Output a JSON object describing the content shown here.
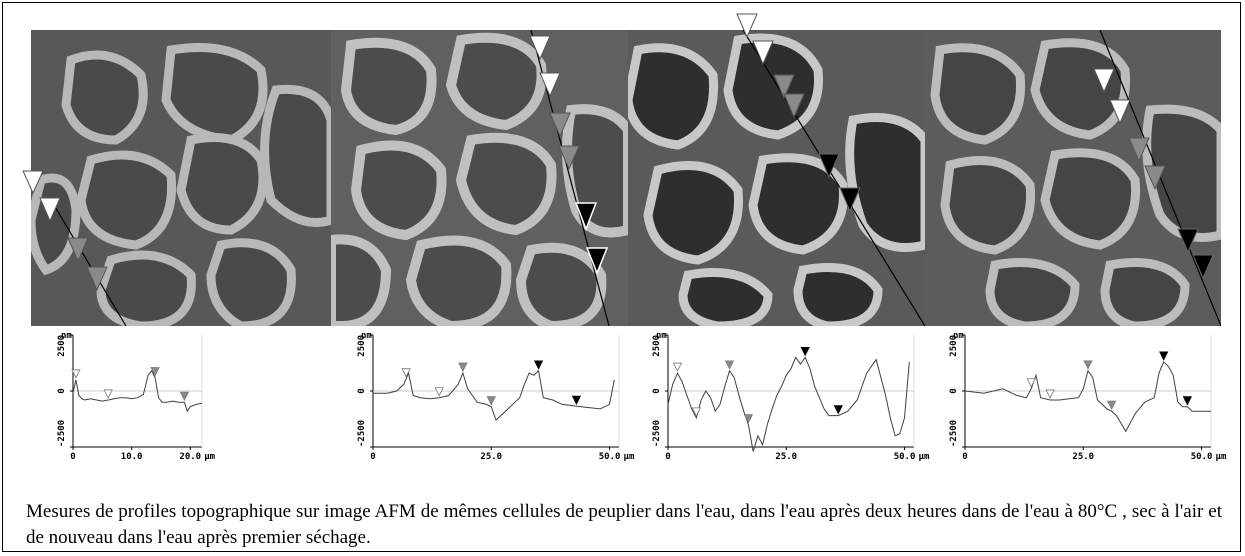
{
  "caption": "Mesures de profiles topographique sur image AFM de mêmes cellules de peuplier dans l'eau, dans l'eau après deux heures dans de l'eau à 80°C , sec à l'air et de nouveau dans l'eau après premier séchage.",
  "colors": {
    "frame": "#000000",
    "open_marker": "#ffffff",
    "gray_marker": "#8a8a8a",
    "black_marker": "#000000",
    "profile_line": "#404040"
  },
  "chart_data": [
    {
      "type": "line",
      "panel": 1,
      "x_unit": "µm",
      "y_unit": "nm",
      "xlim": [
        0,
        22
      ],
      "ylim": [
        -2500,
        2500
      ],
      "x_ticks": [
        0,
        10.0,
        20.0
      ],
      "x_tick_labels": [
        "0",
        "10.0",
        "20.0"
      ],
      "y_ticks": [
        2500,
        0,
        -2500
      ],
      "y_tick_labels": [
        "2500",
        "0",
        "-2500"
      ],
      "x": [
        0,
        0.5,
        1,
        1.5,
        2,
        3,
        4,
        5,
        6,
        7,
        8,
        9,
        10,
        11,
        12,
        12.8,
        13.4,
        14,
        14.6,
        15.2,
        16,
        17,
        18,
        19,
        19.5,
        20,
        21,
        22
      ],
      "y": [
        -100,
        500,
        -200,
        -350,
        -400,
        -350,
        -400,
        -450,
        -400,
        -350,
        -300,
        -300,
        -350,
        -300,
        -150,
        700,
        900,
        600,
        -300,
        -500,
        -500,
        -450,
        -500,
        -500,
        -900,
        -700,
        -600,
        -550
      ],
      "markers": [
        {
          "x": 0.5,
          "style": "open"
        },
        {
          "x": 6.0,
          "style": "open"
        },
        {
          "x": 14.0,
          "style": "gray"
        },
        {
          "x": 19.0,
          "style": "gray"
        }
      ]
    },
    {
      "type": "line",
      "panel": 2,
      "x_unit": "µm",
      "y_unit": "nm",
      "xlim": [
        0,
        52
      ],
      "ylim": [
        -2500,
        2500
      ],
      "x_ticks": [
        0,
        25.0,
        50.0
      ],
      "x_tick_labels": [
        "0",
        "25.0",
        "50.0"
      ],
      "y_ticks": [
        2500,
        0,
        -2500
      ],
      "y_tick_labels": [
        "2500",
        "0",
        "-2500"
      ],
      "x": [
        0,
        3,
        5,
        6.5,
        7.5,
        8.5,
        10,
        12,
        14,
        16,
        18,
        19,
        20,
        22,
        24,
        25,
        26,
        28,
        30,
        31,
        32,
        33,
        34,
        35,
        36,
        38,
        40,
        44,
        48,
        50,
        51
      ],
      "y": [
        -100,
        -100,
        0,
        300,
        800,
        -200,
        -300,
        -350,
        -300,
        -200,
        300,
        800,
        100,
        -500,
        -600,
        -700,
        -1300,
        -900,
        -500,
        -300,
        300,
        800,
        700,
        900,
        -300,
        -400,
        -600,
        -700,
        -800,
        -600,
        500
      ],
      "markers": [
        {
          "x": 7.0,
          "style": "open"
        },
        {
          "x": 14.0,
          "style": "open"
        },
        {
          "x": 19.0,
          "style": "gray"
        },
        {
          "x": 25.0,
          "style": "gray"
        },
        {
          "x": 35.0,
          "style": "black"
        },
        {
          "x": 43.0,
          "style": "black"
        }
      ]
    },
    {
      "type": "line",
      "panel": 3,
      "x_unit": "µm",
      "y_unit": "nm",
      "xlim": [
        0,
        52
      ],
      "ylim": [
        -2500,
        2500
      ],
      "x_ticks": [
        0,
        25.0,
        50.0
      ],
      "x_tick_labels": [
        "0",
        "25.0",
        "50.0"
      ],
      "y_ticks": [
        2500,
        0,
        -2500
      ],
      "y_tick_labels": [
        "2500",
        "0",
        "-2500"
      ],
      "x": [
        0,
        1,
        2,
        3,
        4,
        5,
        6,
        7,
        8,
        9,
        10,
        11,
        12,
        13,
        14,
        15,
        16,
        17,
        18,
        19,
        20,
        21,
        22,
        23,
        24,
        25,
        26,
        27,
        28,
        29,
        30,
        31,
        32,
        33,
        34,
        36,
        38,
        40,
        42,
        44,
        45,
        46,
        47,
        48,
        49,
        50,
        51
      ],
      "y": [
        -600,
        300,
        800,
        400,
        -200,
        -800,
        -1200,
        -400,
        0,
        -300,
        -900,
        -600,
        200,
        900,
        600,
        -200,
        -900,
        -1500,
        -2700,
        -2000,
        -2400,
        -1500,
        -800,
        -200,
        200,
        700,
        1000,
        1500,
        1200,
        1500,
        1000,
        200,
        -300,
        -800,
        -1100,
        -1100,
        -900,
        -400,
        800,
        1400,
        600,
        -200,
        -1200,
        -2000,
        -1900,
        -1200,
        1300
      ],
      "markers": [
        {
          "x": 2.0,
          "style": "open"
        },
        {
          "x": 6.0,
          "style": "open"
        },
        {
          "x": 13.0,
          "style": "gray"
        },
        {
          "x": 17.0,
          "style": "gray"
        },
        {
          "x": 29.0,
          "style": "black"
        },
        {
          "x": 36.0,
          "style": "black"
        }
      ]
    },
    {
      "type": "line",
      "panel": 4,
      "x_unit": "µm",
      "y_unit": "nm",
      "xlim": [
        0,
        52
      ],
      "ylim": [
        -2500,
        2500
      ],
      "x_ticks": [
        0,
        25.0,
        50.0
      ],
      "x_tick_labels": [
        "0",
        "25.0",
        "50.0"
      ],
      "y_ticks": [
        2500,
        0,
        -2500
      ],
      "y_tick_labels": [
        "2500",
        "0",
        "-2500"
      ],
      "x": [
        0,
        4,
        8,
        11,
        13,
        14,
        15,
        16,
        18,
        20,
        22,
        24,
        25,
        26,
        27,
        28,
        30,
        31,
        32,
        34,
        36,
        38,
        40,
        41,
        42,
        43,
        44,
        45,
        46,
        47,
        48,
        50,
        52
      ],
      "y": [
        0,
        -100,
        100,
        -200,
        -300,
        100,
        700,
        -300,
        -400,
        -400,
        -350,
        -300,
        100,
        900,
        600,
        -400,
        -800,
        -900,
        -1100,
        -1800,
        -1000,
        -500,
        -300,
        800,
        1300,
        1100,
        700,
        -500,
        -700,
        -700,
        -900,
        -900,
        -900
      ],
      "markers": [
        {
          "x": 14.0,
          "style": "open"
        },
        {
          "x": 18.0,
          "style": "open"
        },
        {
          "x": 26.0,
          "style": "gray"
        },
        {
          "x": 31.0,
          "style": "gray"
        },
        {
          "x": 42.0,
          "style": "black"
        },
        {
          "x": 47.0,
          "style": "black"
        }
      ]
    }
  ]
}
